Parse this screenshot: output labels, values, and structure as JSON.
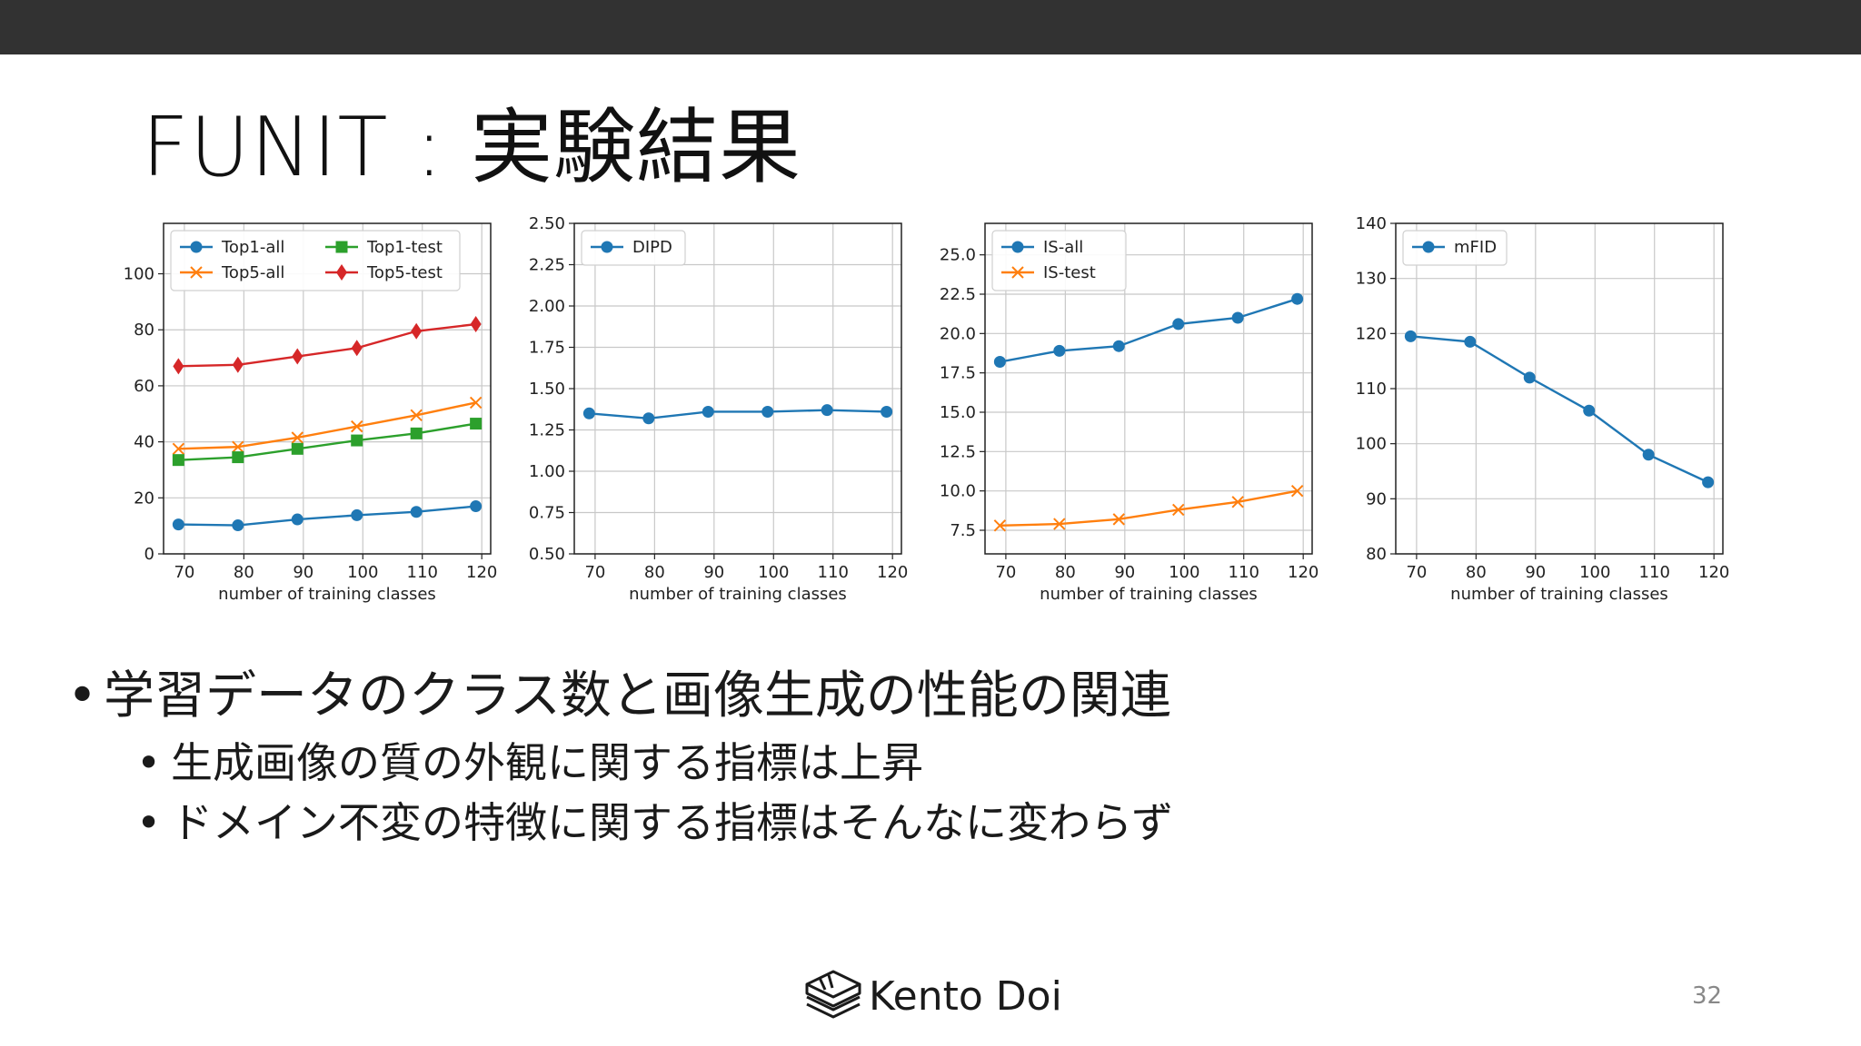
{
  "slide": {
    "title": "FUNIT : 実験結果",
    "bullets": [
      {
        "level": 1,
        "text": "学習データのクラス数と画像生成の性能の関連"
      },
      {
        "level": 2,
        "text": "生成画像の質の外観に関する指標は上昇"
      },
      {
        "level": 2,
        "text": "ドメイン不変の特徴に関する指標はそんなに変わらず"
      }
    ],
    "bullet_symbol": "•",
    "footer": {
      "brand": "Kento Doi",
      "logo_icon": "layered-box-logo-icon"
    },
    "page_number": "32",
    "colors": {
      "top_bar": "#323232",
      "blue": "#1f77b4",
      "orange": "#ff7f0e",
      "green": "#2ca02c",
      "red": "#d62728"
    }
  },
  "chart_data": [
    {
      "type": "line",
      "xlabel": "number of training classes",
      "ylabel": "",
      "x": [
        69,
        79,
        89,
        99,
        109,
        119
      ],
      "xticks": [
        70,
        80,
        90,
        100,
        110,
        120
      ],
      "xlim": [
        66.5,
        121.5
      ],
      "ylim": [
        0,
        118
      ],
      "yticks": [
        0,
        20,
        40,
        60,
        80,
        100
      ],
      "yticklabels": [
        "0",
        "20",
        "40",
        "60",
        "80",
        "100"
      ],
      "grid": true,
      "legend": {
        "placement": "top-left",
        "columns": 2
      },
      "series": [
        {
          "name": "Top1-all",
          "color": "#1f77b4",
          "marker": "circle",
          "values": [
            10.5,
            10.2,
            12.3,
            13.8,
            15.0,
            17.0
          ]
        },
        {
          "name": "Top5-all",
          "color": "#ff7f0e",
          "marker": "x",
          "values": [
            37.5,
            38.2,
            41.5,
            45.5,
            49.5,
            54.0
          ]
        },
        {
          "name": "Top1-test",
          "color": "#2ca02c",
          "marker": "square",
          "values": [
            33.5,
            34.5,
            37.5,
            40.5,
            43.0,
            46.5
          ]
        },
        {
          "name": "Top5-test",
          "color": "#d62728",
          "marker": "diamond",
          "values": [
            67.0,
            67.5,
            70.5,
            73.5,
            79.5,
            82.0
          ]
        }
      ]
    },
    {
      "type": "line",
      "xlabel": "number of training classes",
      "ylabel": "",
      "x": [
        69,
        79,
        89,
        99,
        109,
        119
      ],
      "xticks": [
        70,
        80,
        90,
        100,
        110,
        120
      ],
      "xlim": [
        66.5,
        121.5
      ],
      "ylim": [
        0.5,
        2.5
      ],
      "yticks": [
        0.5,
        0.75,
        1.0,
        1.25,
        1.5,
        1.75,
        2.0,
        2.25,
        2.5
      ],
      "yticklabels": [
        "0.50",
        "0.75",
        "1.00",
        "1.25",
        "1.50",
        "1.75",
        "2.00",
        "2.25",
        "2.50"
      ],
      "grid": true,
      "legend": {
        "placement": "top-left",
        "columns": 1
      },
      "series": [
        {
          "name": "DIPD",
          "color": "#1f77b4",
          "marker": "circle",
          "values": [
            1.35,
            1.32,
            1.36,
            1.36,
            1.37,
            1.36
          ]
        }
      ]
    },
    {
      "type": "line",
      "xlabel": "number of training classes",
      "ylabel": "",
      "x": [
        69,
        79,
        89,
        99,
        109,
        119
      ],
      "xticks": [
        70,
        80,
        90,
        100,
        110,
        120
      ],
      "xlim": [
        66.5,
        121.5
      ],
      "ylim": [
        6.0,
        27.0
      ],
      "yticks": [
        7.5,
        10.0,
        12.5,
        15.0,
        17.5,
        20.0,
        22.5,
        25.0
      ],
      "yticklabels": [
        "7.5",
        "10.0",
        "12.5",
        "15.0",
        "17.5",
        "20.0",
        "22.5",
        "25.0"
      ],
      "grid": true,
      "legend": {
        "placement": "top-left",
        "columns": 1
      },
      "series": [
        {
          "name": "IS-all",
          "color": "#1f77b4",
          "marker": "circle",
          "values": [
            18.2,
            18.9,
            19.2,
            20.6,
            21.0,
            22.2
          ]
        },
        {
          "name": "IS-test",
          "color": "#ff7f0e",
          "marker": "x",
          "values": [
            7.8,
            7.9,
            8.2,
            8.8,
            9.3,
            10.0
          ]
        }
      ]
    },
    {
      "type": "line",
      "xlabel": "number of training classes",
      "ylabel": "",
      "x": [
        69,
        79,
        89,
        99,
        109,
        119
      ],
      "xticks": [
        70,
        80,
        90,
        100,
        110,
        120
      ],
      "xlim": [
        66.5,
        121.5
      ],
      "ylim": [
        80,
        140
      ],
      "yticks": [
        80,
        90,
        100,
        110,
        120,
        130,
        140
      ],
      "yticklabels": [
        "80",
        "90",
        "100",
        "110",
        "120",
        "130",
        "140"
      ],
      "grid": true,
      "legend": {
        "placement": "top-left",
        "columns": 1
      },
      "series": [
        {
          "name": "mFID",
          "color": "#1f77b4",
          "marker": "circle",
          "values": [
            119.5,
            118.5,
            112.0,
            106.0,
            98.0,
            93.0
          ]
        }
      ]
    }
  ]
}
